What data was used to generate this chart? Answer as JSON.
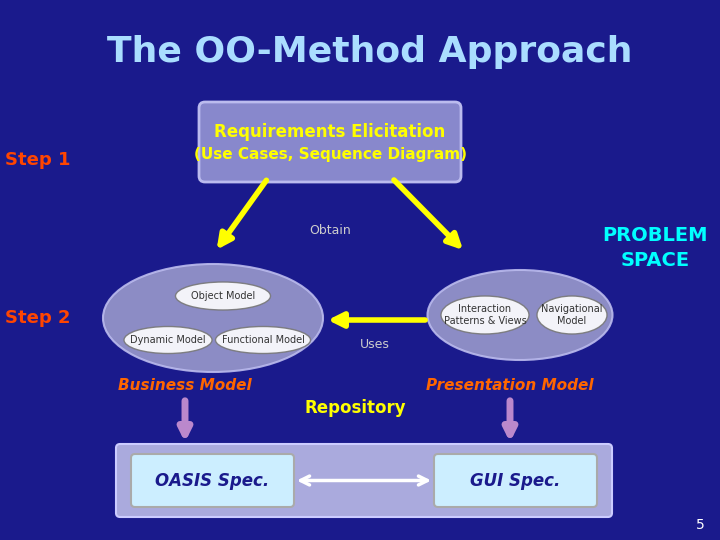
{
  "title": "The OO-Method Approach",
  "title_color": "#aaddff",
  "title_fontsize": 26,
  "bg_color": "#1a1a8c",
  "step1_label": "Step 1",
  "step2_label": "Step 2",
  "step_color": "#FF4500",
  "step_fontsize": 13,
  "req_box_text_line1": "Requirements Elicitation",
  "req_box_text_line2": "(Use Cases, Sequence Diagram)",
  "req_box_fill": "#8888cc",
  "req_box_edge": "#bbbbee",
  "req_text_color": "#FFFF00",
  "req_fontsize1": 12,
  "req_fontsize2": 11,
  "obtain_text": "Obtain",
  "obtain_color": "#cccccc",
  "obtain_fontsize": 9,
  "problem_space_text": "PROBLEM\nSPACE",
  "problem_space_color": "#00FFFF",
  "problem_space_fontsize": 14,
  "uses_text": "Uses",
  "uses_color": "#cccccc",
  "uses_fontsize": 9,
  "business_model_text": "Business Model",
  "presentation_model_text": "Presentation Model",
  "model_text_color": "#FF6600",
  "model_fontsize": 11,
  "repository_text": "Repository",
  "repository_color": "#FFFF00",
  "repository_fontsize": 12,
  "oasis_text": "OASIS Spec.",
  "gui_text": "GUI Spec.",
  "spec_text_color": "#1a1a8c",
  "spec_fontsize": 12,
  "bottom_box_fill": "#aaaadd",
  "bottom_box_edge": "#ccccff",
  "spec_box_fill": "#cceeff",
  "spec_box_edge": "#aaaaaa",
  "left_ellipse_fill": "#9999cc",
  "right_ellipse_fill": "#9999cc",
  "object_model_text": "Object Model",
  "dynamic_model_text": "Dynamic Model",
  "functional_model_text": "Functional Model",
  "interaction_text": "Interaction\nPatterns & Views",
  "navigational_text": "Navigational\nModel",
  "inner_text_color": "#333333",
  "inner_fontsize": 7,
  "page_num": "5",
  "arrow_yellow": "#FFFF00",
  "arrow_purple": "#bb88cc"
}
